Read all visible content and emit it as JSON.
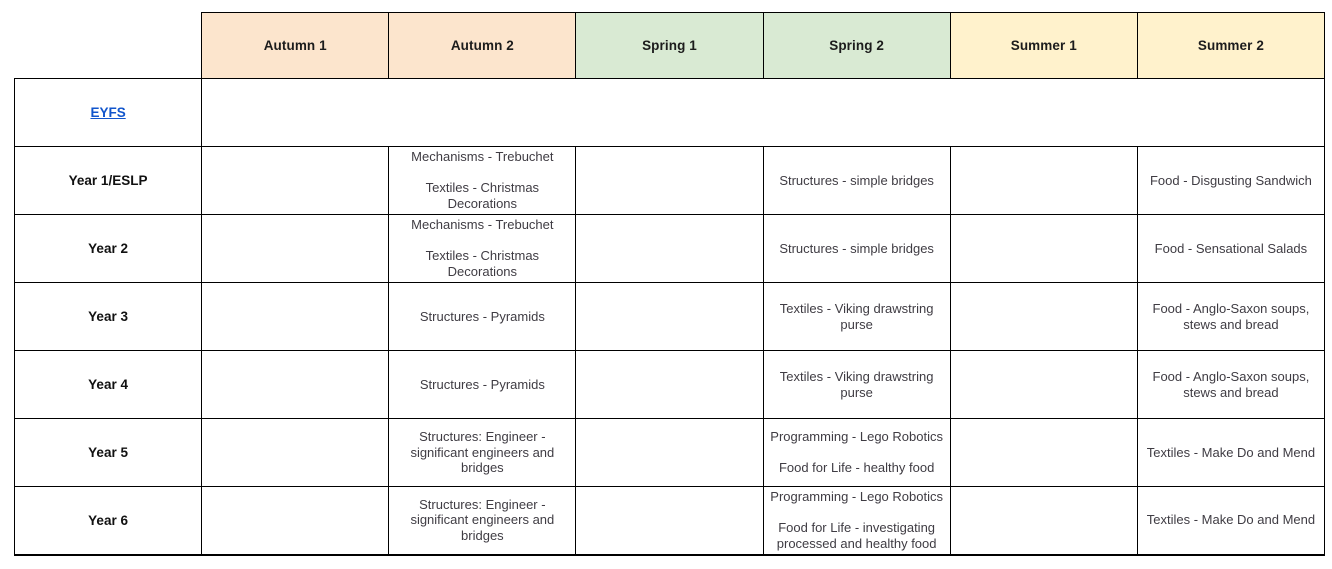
{
  "page": {
    "background": "#ffffff"
  },
  "table": {
    "corner_label": "",
    "link_color": "#1155cc",
    "border_color": "#000000",
    "body_text_color": "#3f3c43",
    "columns": [
      {
        "label": "Autumn 1",
        "color": "#fce5cd"
      },
      {
        "label": "Autumn 2",
        "color": "#fce5cd"
      },
      {
        "label": "Spring 1",
        "color": "#d9ead3"
      },
      {
        "label": "Spring 2",
        "color": "#d9ead3"
      },
      {
        "label": "Summer 1",
        "color": "#fff2cc"
      },
      {
        "label": "Summer 2",
        "color": "#fff2cc"
      }
    ],
    "rows": [
      {
        "label": "EYFS",
        "label_link": true,
        "merged": true,
        "cells": [
          [],
          [],
          [],
          [],
          [],
          []
        ]
      },
      {
        "label": "Year 1/ESLP",
        "cells": [
          [],
          [
            "Mechanisms - Trebuchet",
            "Textiles - Christmas Decorations"
          ],
          [],
          [
            "Structures - simple bridges"
          ],
          [],
          [
            "Food - Disgusting Sandwich"
          ]
        ]
      },
      {
        "label": "Year 2",
        "cells": [
          [],
          [
            "Mechanisms - Trebuchet",
            "Textiles - Christmas Decorations"
          ],
          [],
          [
            "Structures - simple bridges"
          ],
          [],
          [
            "Food - Sensational Salads"
          ]
        ]
      },
      {
        "label": "Year 3",
        "cells": [
          [],
          [
            "Structures - Pyramids"
          ],
          [],
          [
            "Textiles - Viking drawstring purse"
          ],
          [],
          [
            "Food - Anglo-Saxon soups, stews and bread"
          ]
        ]
      },
      {
        "label": "Year 4",
        "cells": [
          [],
          [
            "Structures - Pyramids"
          ],
          [],
          [
            "Textiles - Viking drawstring purse"
          ],
          [],
          [
            "Food - Anglo-Saxon soups, stews and bread"
          ]
        ]
      },
      {
        "label": "Year 5",
        "cells": [
          [],
          [
            "Structures: Engineer - significant engineers and bridges"
          ],
          [],
          [
            "Programming - Lego Robotics",
            "Food for Life - healthy food"
          ],
          [],
          [
            "Textiles - Make Do and Mend"
          ]
        ]
      },
      {
        "label": "Year 6",
        "cells": [
          [],
          [
            "Structures: Engineer - significant engineers and bridges"
          ],
          [],
          [
            "Programming - Lego Robotics",
            "Food for Life - investigating processed and healthy food"
          ],
          [],
          [
            "Textiles - Make Do and Mend"
          ]
        ]
      }
    ]
  }
}
